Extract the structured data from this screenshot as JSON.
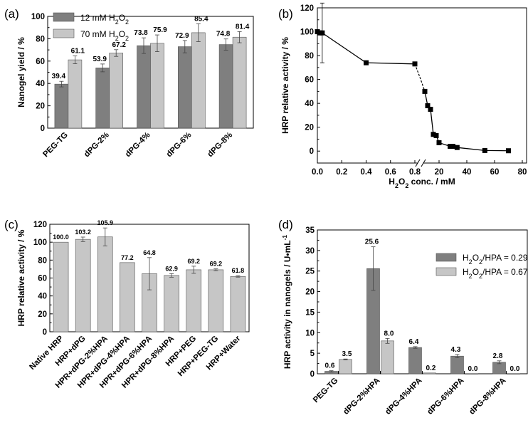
{
  "chart_data": [
    {
      "panel": "(a)",
      "type": "bar",
      "ylabel": "Nanogel yield / %",
      "ylim": [
        0,
        100
      ],
      "yticks": [
        "0",
        "20",
        "40",
        "60",
        "80",
        "100"
      ],
      "categories": [
        "PEG-TG",
        "dPG-2%",
        "dPG-4%",
        "dPG-6%",
        "dPG-8%"
      ],
      "legend": [
        "12 mM H2O2",
        "70 mM H2O2"
      ],
      "series": [
        {
          "name": "12 mM H2O2",
          "color": "#7f7f7f",
          "values": [
            39.4,
            53.9,
            73.8,
            72.9,
            74.8
          ],
          "errors": [
            2.5,
            3.5,
            7.0,
            5.5,
            5.0
          ],
          "labels": [
            "39.4",
            "53.9",
            "73.8",
            "72.9",
            "74.8"
          ]
        },
        {
          "name": "70 mM H2O2",
          "color": "#c6c6c6",
          "values": [
            61.1,
            67.2,
            75.9,
            85.4,
            81.4
          ],
          "errors": [
            3.5,
            3.0,
            7.5,
            8.0,
            5.0
          ],
          "labels": [
            "61.1",
            "67.2",
            "75.9",
            "85.4",
            "81.4"
          ]
        }
      ]
    },
    {
      "panel": "(b)",
      "type": "line",
      "ylabel": "HRP relative activity / %",
      "xlabel": "H2O2 conc. / mM",
      "ylim": [
        -10,
        120
      ],
      "yticks": [
        "0",
        "20",
        "40",
        "60",
        "80",
        "100",
        "120"
      ],
      "xticks": [
        "0.0",
        "0.2",
        "0.4",
        "0.6",
        "0.8",
        "20",
        "40",
        "60",
        "80"
      ],
      "segment1": {
        "x": [
          0.0,
          0.02,
          0.04,
          0.4,
          0.8
        ],
        "y": [
          100,
          99,
          99,
          74,
          73
        ],
        "err": [
          0,
          0,
          25,
          0,
          0
        ]
      },
      "segment2": {
        "x": [
          10,
          12,
          14,
          16,
          18,
          20,
          28,
          30,
          33,
          53,
          70
        ],
        "y": [
          50,
          38,
          35,
          14,
          13,
          7,
          4,
          4,
          3,
          0.5,
          0.3
        ]
      }
    },
    {
      "panel": "(c)",
      "type": "bar",
      "ylabel": "HRP relative activity / %",
      "ylim": [
        0,
        120
      ],
      "yticks": [
        "0",
        "20",
        "40",
        "60",
        "80",
        "100",
        "120"
      ],
      "categories": [
        "Native HRP",
        "HRP+dPG",
        "HPR+dPG-2%HPA",
        "HPR+dPG-4%HPA",
        "HPR+dPG-6%HPA",
        "HPR+dPG-8%HPA",
        "HRP+PEG",
        "HRP+PEG-TG",
        "HRP+Water"
      ],
      "series": [
        {
          "name": "activity",
          "color": "#c6c6c6",
          "values": [
            100.0,
            103.2,
            105.9,
            77.2,
            64.8,
            62.9,
            69.2,
            69.2,
            61.8
          ],
          "errors": [
            0,
            2.5,
            10.0,
            0,
            18.0,
            2.0,
            4.0,
            1.0,
            0.8
          ],
          "labels": [
            "100.0",
            "103.2",
            "105.9",
            "77.2",
            "64.8",
            "62.9",
            "69.2",
            "69.2",
            "61.8"
          ]
        }
      ]
    },
    {
      "panel": "(d)",
      "type": "bar",
      "ylabel": "HRP activity in nanogels / U•mL-1",
      "ylim": [
        0,
        35
      ],
      "yticks": [
        "0",
        "5",
        "10",
        "15",
        "20",
        "25",
        "30",
        "35"
      ],
      "categories": [
        "PEG-TG",
        "dPG-2%HPA",
        "dPG-4%HPA",
        "dPG-6%HPA",
        "dPG-8%HPA"
      ],
      "legend": [
        "H2O2/HPA = 0.29",
        "H2O2/HPA = 0.67"
      ],
      "series": [
        {
          "name": "H2O2/HPA = 0.29",
          "color": "#7f7f7f",
          "values": [
            0.6,
            25.6,
            6.4,
            4.3,
            2.8
          ],
          "errors": [
            0.15,
            5.3,
            0.2,
            0.4,
            0.35
          ],
          "labels": [
            "0.6",
            "25.6",
            "6.4",
            "4.3",
            "2.8"
          ]
        },
        {
          "name": "H2O2/HPA = 0.67",
          "color": "#c6c6c6",
          "values": [
            3.5,
            8.0,
            0.2,
            0.0,
            0.0
          ],
          "errors": [
            0.1,
            0.6,
            0,
            0,
            0
          ],
          "labels": [
            "3.5",
            "8.0",
            "0.2",
            "0.0",
            "0.0"
          ]
        }
      ]
    }
  ]
}
